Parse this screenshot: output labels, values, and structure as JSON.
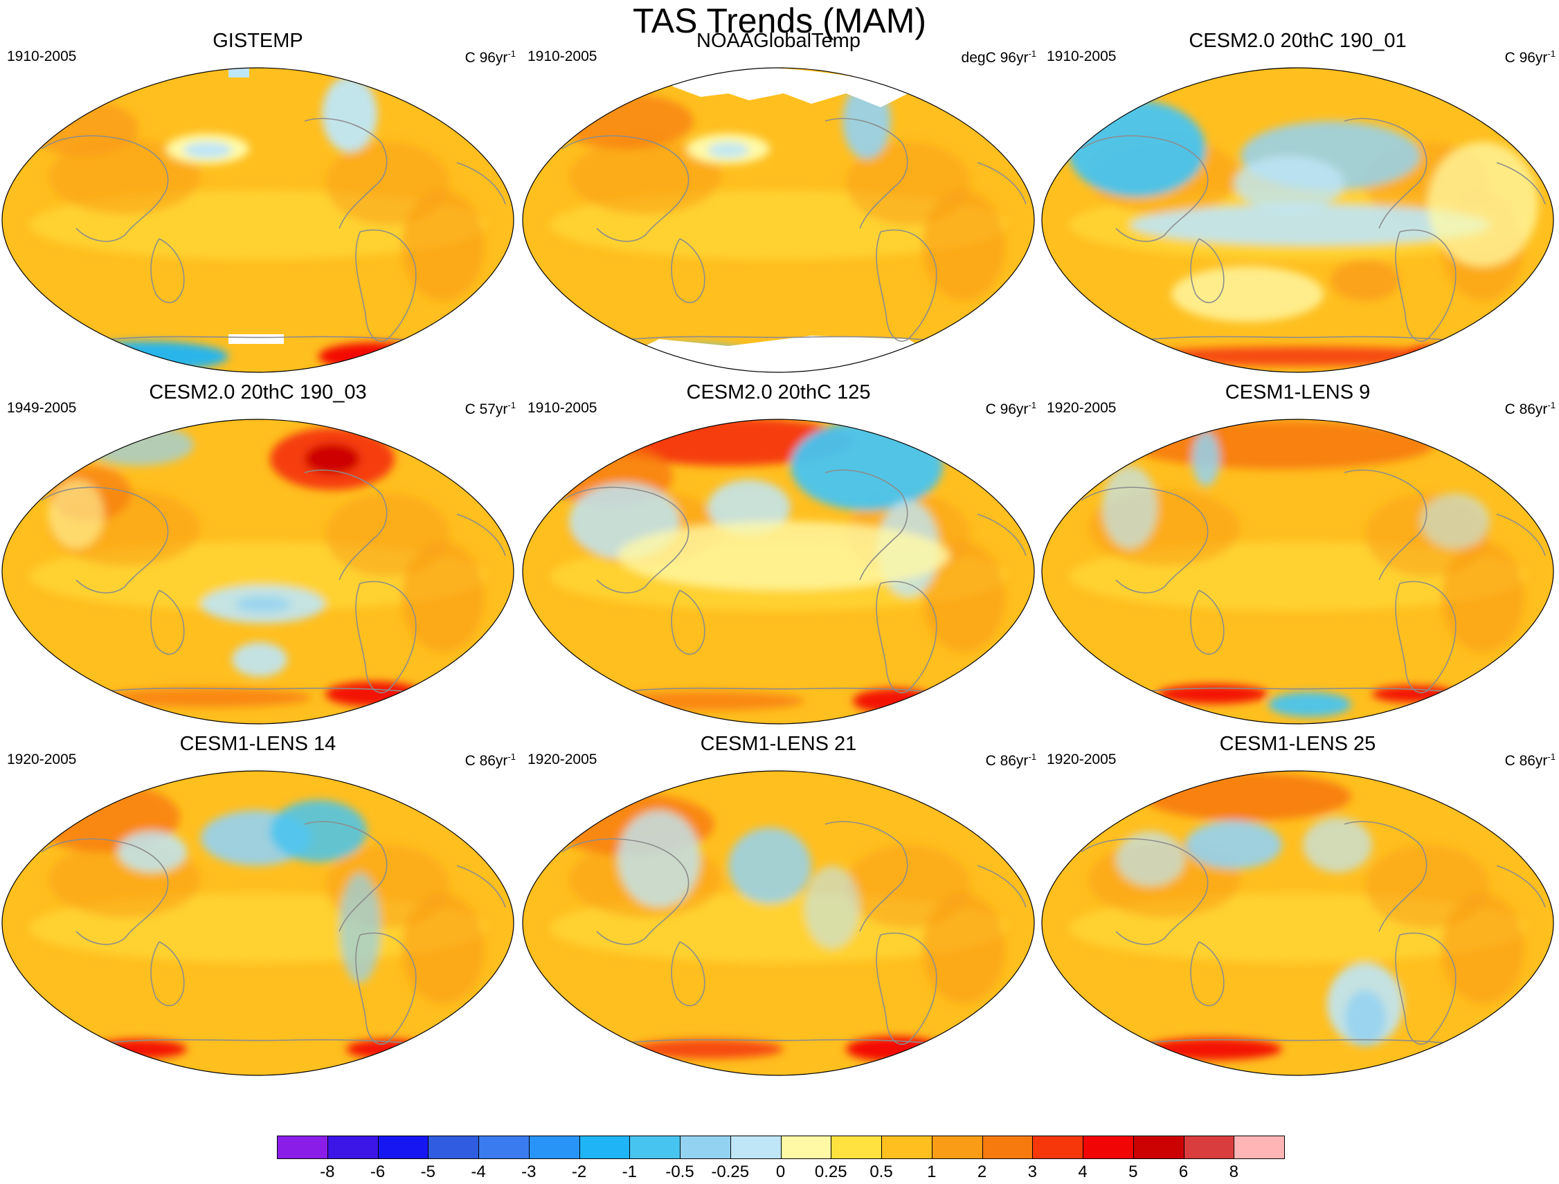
{
  "title": "TAS Trends (MAM)",
  "colors": {
    "ocean_base": "#ffbf1f",
    "coast": "#8c8c8c",
    "levels": [
      "#8a1ee8",
      "#3b16e6",
      "#1616f2",
      "#2f5ce0",
      "#3a7cf0",
      "#2894f7",
      "#1eb4f5",
      "#48c4f0",
      "#94d2f2",
      "#bfe6f7",
      "#fff9a6",
      "#ffe240",
      "#ffbf1f",
      "#fa9c16",
      "#f77a0f",
      "#f5370a",
      "#f20505",
      "#cc0202",
      "#d93d3d",
      "#ffb5b5"
    ],
    "missing": "#ffffff"
  },
  "panels": [
    {
      "title": "GISTEMP",
      "period": "1910-2005",
      "units_prefix": "C 96yr",
      "units_exp": "-1",
      "pattern": [
        "mid-latitude cool spot North Pacific",
        "cool Greenland",
        "blue and red Antarctic",
        "missing data near pole"
      ]
    },
    {
      "title": "NOAAGlobalTemp",
      "period": "1910-2005",
      "units_prefix": "degC 96yr",
      "units_exp": "-1",
      "pattern": [
        "missing Arctic",
        "missing Antarctica",
        "cool North Pacific spot"
      ]
    },
    {
      "title": "CESM2.0 20thC 190_01",
      "period": "1910-2005",
      "units_prefix": "C 96yr",
      "units_exp": "-1",
      "pattern": [
        "cool Asia",
        "cool tropical Pacific",
        "warm Antarctic margin"
      ]
    },
    {
      "title": "CESM2.0 20thC 190_03",
      "period": "1949-2005",
      "units_prefix": "C 57yr",
      "units_exp": "-1",
      "pattern": [
        "warm Canada",
        "cool South Pacific",
        "warm Antarctic margin"
      ]
    },
    {
      "title": "CESM2.0 20thC 125",
      "period": "1910-2005",
      "units_prefix": "C 96yr",
      "units_exp": "-1",
      "pattern": [
        "warm Siberia",
        "cool North Atlantic",
        "cool Asia"
      ]
    },
    {
      "title": "CESM1-LENS 9",
      "period": "1920-2005",
      "units_prefix": "C 86yr",
      "units_exp": "-1",
      "pattern": [
        "warm Arctic",
        "cool Antarctica"
      ]
    },
    {
      "title": "CESM1-LENS 14",
      "period": "1920-2005",
      "units_prefix": "C 86yr",
      "units_exp": "-1",
      "pattern": [
        "cool North America",
        "cool North Pacific"
      ]
    },
    {
      "title": "CESM1-LENS 21",
      "period": "1920-2005",
      "units_prefix": "C 86yr",
      "units_exp": "-1",
      "pattern": [
        "cool North Pacific",
        "cool North America"
      ]
    },
    {
      "title": "CESM1-LENS 25",
      "period": "1920-2005",
      "units_prefix": "C 86yr",
      "units_exp": "-1",
      "pattern": [
        "cool North Pacific",
        "cool Ross Sea"
      ]
    }
  ],
  "colorbar": {
    "labels": [
      "-8",
      "-6",
      "-5",
      "-4",
      "-3",
      "-2",
      "-1",
      "-0.5",
      "-0.25",
      "0",
      "0.25",
      "0.5",
      "1",
      "2",
      "3",
      "4",
      "5",
      "6",
      "8"
    ]
  }
}
